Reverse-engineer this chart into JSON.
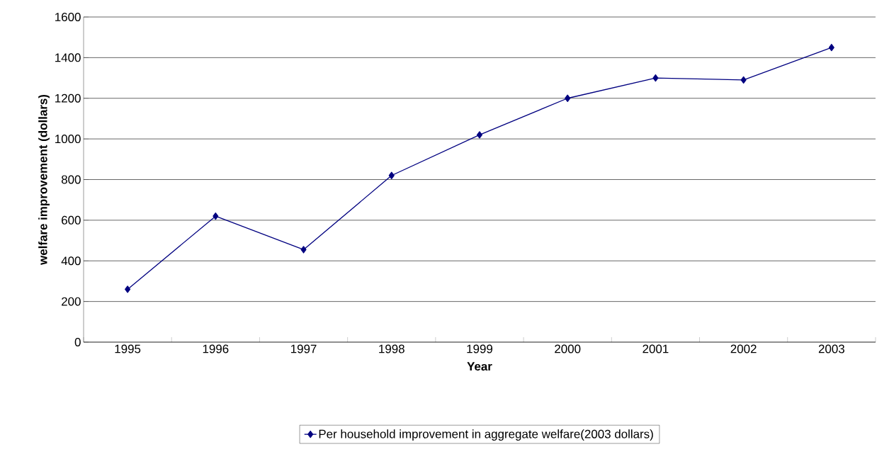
{
  "chart_data": {
    "type": "line",
    "xlabel": "Year",
    "ylabel": "welfare improvement (dollars)",
    "categories": [
      "1995",
      "1996",
      "1997",
      "1998",
      "1999",
      "2000",
      "2001",
      "2002",
      "2003"
    ],
    "series": [
      {
        "name": "Per household improvement in aggregate welfare(2003 dollars)",
        "color": "#000080",
        "values": [
          260,
          620,
          455,
          820,
          1020,
          1200,
          1300,
          1290,
          1450
        ]
      }
    ],
    "ylim": [
      0,
      1600
    ],
    "yticks": [
      0,
      200,
      400,
      600,
      800,
      1000,
      1200,
      1400,
      1600
    ],
    "grid": "y",
    "legend": "bottom",
    "marker": "diamond",
    "line_style": "solid"
  }
}
